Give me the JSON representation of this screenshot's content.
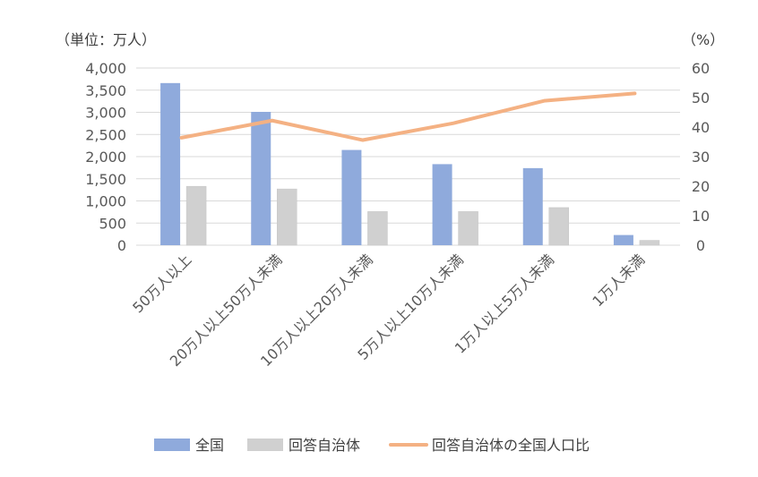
{
  "chart_data": {
    "type": "bar",
    "categories": [
      "50万人以上",
      "20万人以上50万人未満",
      "10万人以上20万人未満",
      "5万人以上10万人未満",
      "1万人以上5万人未満",
      "1万人未満"
    ],
    "series": [
      {
        "name": "全国",
        "type": "bar",
        "axis": "left",
        "color": "#8faadc",
        "values": [
          3660,
          3010,
          2150,
          1830,
          1740,
          230
        ]
      },
      {
        "name": "回答自治体",
        "type": "bar",
        "axis": "left",
        "color": "#d0d0d0",
        "values": [
          1330,
          1270,
          760,
          760,
          850,
          110
        ]
      },
      {
        "name": "回答自治体の全国人口比",
        "type": "line",
        "axis": "right",
        "color": "#f4b183",
        "values": [
          36.4,
          42.2,
          35.6,
          41.3,
          48.9,
          51.4
        ]
      }
    ],
    "title": "",
    "left_axis": {
      "unit_label": "（単位：万人）",
      "ylim": [
        0,
        4000
      ],
      "ticks": [
        0,
        500,
        1000,
        1500,
        2000,
        2500,
        3000,
        3500,
        4000
      ],
      "tick_labels": [
        "0",
        "500",
        "1,000",
        "1,500",
        "2,000",
        "2,500",
        "3,000",
        "3,500",
        "4,000"
      ]
    },
    "right_axis": {
      "unit_label": "（%）",
      "ylim": [
        0,
        60
      ],
      "ticks": [
        0,
        10,
        20,
        30,
        40,
        50,
        60
      ],
      "tick_labels": [
        "0",
        "10",
        "20",
        "30",
        "40",
        "50",
        "60"
      ]
    },
    "grid": true,
    "legend_position": "bottom"
  }
}
